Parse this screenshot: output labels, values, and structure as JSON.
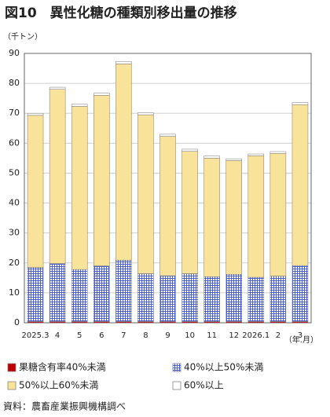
{
  "chart_data": {
    "type": "stacked-bar",
    "title": "図10　異性化糖の種類別移出量の推移",
    "y_label": "（千トン）",
    "x_label": "（年.月）",
    "source": "資料：農畜産業振興機構調べ",
    "categories": [
      "2025.3",
      "4",
      "5",
      "6",
      "7",
      "8",
      "9",
      "10",
      "11",
      "12",
      "2026.1",
      "2",
      "3"
    ],
    "series": [
      {
        "name": "果糖含有率40%未満",
        "color": "#c00000",
        "values": [
          0.4,
          0.4,
          0.4,
          0.4,
          0.4,
          0.4,
          0.4,
          0.4,
          0.4,
          0.4,
          0.4,
          0.4,
          0.4
        ]
      },
      {
        "name": "40%以上50%未満",
        "color": "#4a5fd0",
        "pattern": "grid",
        "values": [
          18.1,
          19.4,
          17.4,
          18.6,
          20.5,
          16.0,
          15.3,
          16.0,
          15.0,
          15.8,
          14.8,
          15.2,
          18.7
        ]
      },
      {
        "name": "50%以上60%未満",
        "color": "#f9e39a",
        "values": [
          50.8,
          58.2,
          54.5,
          57.0,
          65.6,
          53.1,
          46.6,
          40.9,
          39.6,
          38.0,
          40.6,
          41.0,
          53.8
        ]
      },
      {
        "name": "60%以上",
        "color": "#ffffff",
        "values": [
          0.7,
          0.7,
          0.7,
          0.7,
          0.8,
          0.7,
          0.7,
          0.7,
          0.7,
          0.6,
          0.6,
          0.6,
          0.7
        ]
      }
    ],
    "ylim": [
      0,
      90
    ],
    "yticks": [
      0,
      10,
      20,
      30,
      40,
      50,
      60,
      70,
      80,
      90
    ],
    "grid": true
  }
}
